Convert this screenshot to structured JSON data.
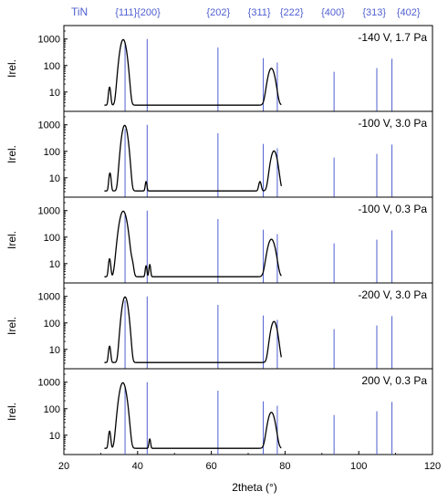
{
  "colors": {
    "reference": "#4f5fd0",
    "pattern": "#000000",
    "axis": "#000000"
  },
  "reference": {
    "phase_label": "TiN",
    "peaks": [
      {
        "label": "{111}",
        "label_x": 36.9,
        "x": 36.6,
        "intensity": 700
      },
      {
        "label": "{200}",
        "label_x": 43.0,
        "x": 42.6,
        "intensity": 1000
      },
      {
        "label": "{202}",
        "label_x": 61.9,
        "x": 61.8,
        "intensity": 480
      },
      {
        "label": "{311}",
        "label_x": 73.0,
        "x": 74.1,
        "intensity": 190
      },
      {
        "label": "{222}",
        "label_x": 81.8,
        "x": 77.9,
        "intensity": 130
      },
      {
        "label": "{400}",
        "label_x": 93.0,
        "x": 93.3,
        "intensity": 58
      },
      {
        "label": "{313}",
        "label_x": 104.2,
        "x": 104.9,
        "intensity": 80
      },
      {
        "label": "{402}",
        "label_x": 113.5,
        "x": 109.0,
        "intensity": 180
      }
    ]
  },
  "chart_data": {
    "type": "line",
    "xlabel": "2theta (°)",
    "ylabel": "Irel.",
    "xlim": [
      20,
      120
    ],
    "x_ticks": [
      "20",
      "40",
      "60",
      "80",
      "100",
      "120"
    ],
    "x_tick_values": [
      20,
      40,
      60,
      80,
      100,
      120
    ],
    "y_scale": "log",
    "ylim": [
      3,
      2000
    ],
    "y_ticks": [
      "1000",
      "100",
      "10"
    ],
    "y_tick_values": [
      1000,
      100,
      10
    ],
    "panels": [
      {
        "label": "-140 V, 1.7 Pa",
        "peaks": [
          {
            "x": 32.4,
            "height": 12,
            "width": 0.25
          },
          {
            "x": 36.1,
            "height": 950,
            "width": 0.65
          },
          {
            "x": 76.3,
            "height": 75,
            "width": 0.75
          }
        ]
      },
      {
        "label": "-100 V, 3.0 Pa",
        "peaks": [
          {
            "x": 32.5,
            "height": 12,
            "width": 0.25
          },
          {
            "x": 36.5,
            "height": 950,
            "width": 0.6
          },
          {
            "x": 42.3,
            "height": 4,
            "width": 0.2
          },
          {
            "x": 73.2,
            "height": 4,
            "width": 0.3
          },
          {
            "x": 77.0,
            "height": 100,
            "width": 0.7
          }
        ]
      },
      {
        "label": "-100 V, 0.3 Pa",
        "peaks": [
          {
            "x": 32.4,
            "height": 12,
            "width": 0.25
          },
          {
            "x": 36.1,
            "height": 950,
            "width": 0.75
          },
          {
            "x": 38.5,
            "height": 7,
            "width": 0.35
          },
          {
            "x": 42.3,
            "height": 5,
            "width": 0.2
          },
          {
            "x": 43.3,
            "height": 6,
            "width": 0.2
          },
          {
            "x": 76.3,
            "height": 80,
            "width": 0.8
          }
        ]
      },
      {
        "label": "-200 V, 3.0 Pa",
        "peaks": [
          {
            "x": 32.4,
            "height": 10,
            "width": 0.25
          },
          {
            "x": 36.6,
            "height": 950,
            "width": 0.6
          },
          {
            "x": 77.0,
            "height": 110,
            "width": 0.7
          }
        ]
      },
      {
        "label": "200 V, 0.3 Pa",
        "peaks": [
          {
            "x": 32.4,
            "height": 11,
            "width": 0.25
          },
          {
            "x": 36.0,
            "height": 950,
            "width": 0.7
          },
          {
            "x": 43.3,
            "height": 4,
            "width": 0.2
          },
          {
            "x": 76.3,
            "height": 70,
            "width": 0.75
          }
        ]
      }
    ]
  }
}
